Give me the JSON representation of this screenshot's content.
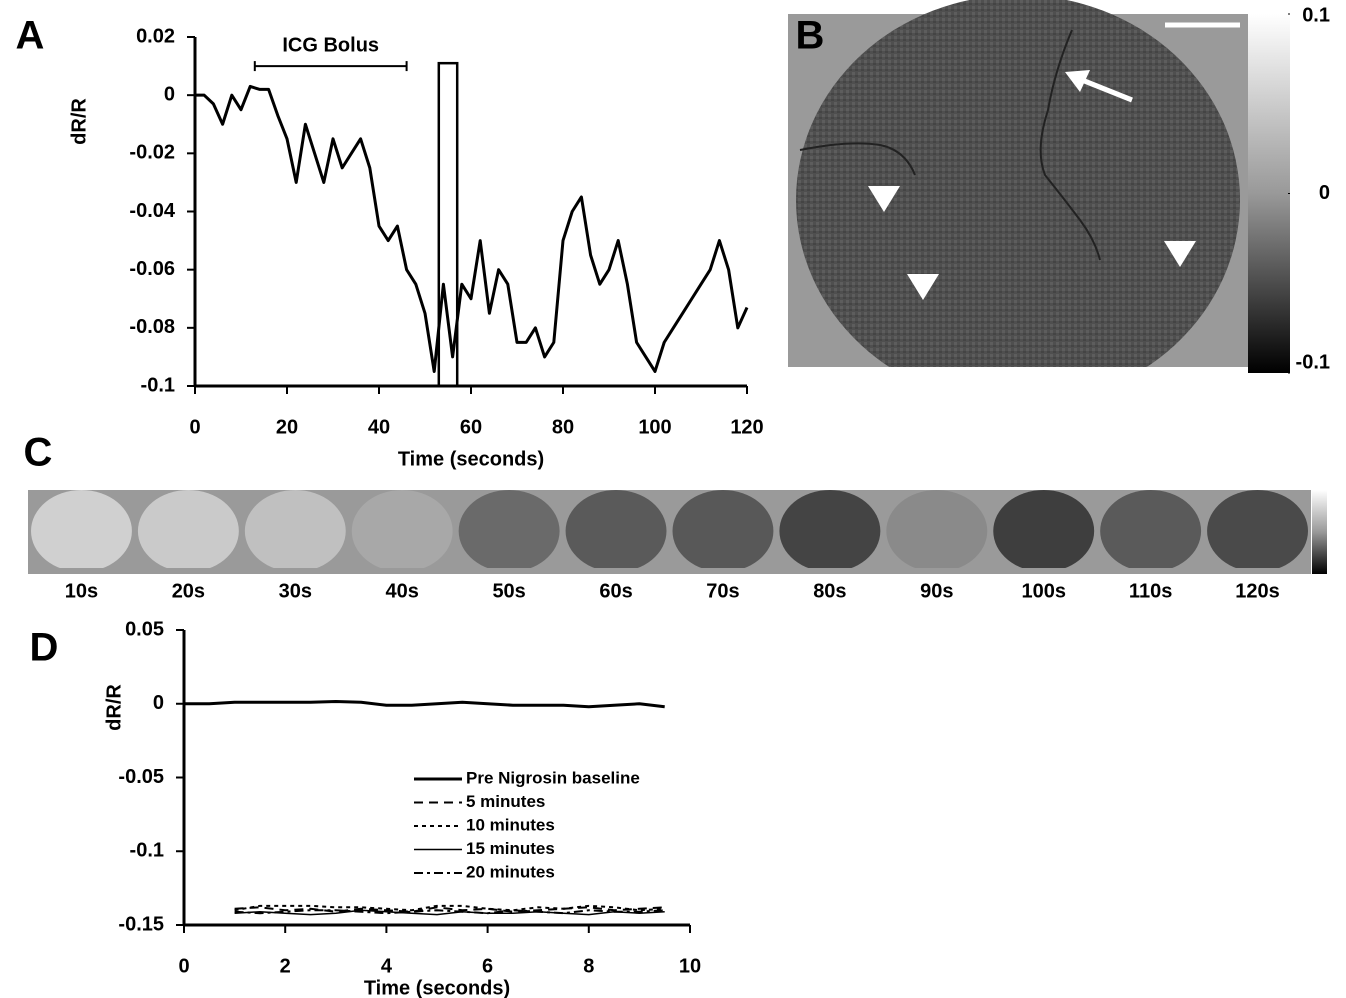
{
  "chart_data": [
    {
      "type": "line",
      "panel_label": "A",
      "xlabel": "Time (seconds)",
      "ylabel": "dR/R",
      "x": [
        0,
        2,
        4,
        6,
        8,
        10,
        12,
        14,
        16,
        18,
        20,
        22,
        24,
        26,
        28,
        30,
        32,
        34,
        36,
        38,
        40,
        42,
        44,
        46,
        48,
        50,
        52,
        54,
        56,
        58,
        60,
        62,
        64,
        66,
        68,
        70,
        72,
        74,
        76,
        78,
        80,
        82,
        84,
        86,
        88,
        90,
        92,
        94,
        96,
        98,
        100,
        102,
        104,
        106,
        108,
        110,
        112,
        114,
        116,
        118,
        120
      ],
      "series": [
        {
          "name": null,
          "color": "#000000",
          "style": "thick-solid",
          "values": [
            0,
            0,
            -0.003,
            -0.01,
            0,
            -0.005,
            0.003,
            0.002,
            0.002,
            -0.007,
            -0.015,
            -0.03,
            -0.01,
            -0.02,
            -0.03,
            -0.015,
            -0.025,
            -0.02,
            -0.015,
            -0.025,
            -0.045,
            -0.05,
            -0.045,
            -0.06,
            -0.065,
            -0.075,
            -0.095,
            -0.065,
            -0.09,
            -0.065,
            -0.07,
            -0.05,
            -0.075,
            -0.06,
            -0.065,
            -0.085,
            -0.085,
            -0.08,
            -0.09,
            -0.085,
            -0.05,
            -0.04,
            -0.035,
            -0.055,
            -0.065,
            -0.06,
            -0.05,
            -0.065,
            -0.085,
            -0.09,
            -0.095,
            -0.085,
            -0.08,
            -0.075,
            -0.07,
            -0.065,
            -0.06,
            -0.05,
            -0.06,
            -0.08,
            -0.073
          ]
        }
      ],
      "xlim": [
        0,
        120
      ],
      "xticks": [
        0,
        20,
        40,
        60,
        80,
        100,
        120
      ],
      "ylim": [
        -0.1,
        0.02
      ],
      "yticks": [
        0.02,
        0,
        -0.02,
        -0.04,
        -0.06,
        -0.08,
        -0.1
      ],
      "annotation": {
        "text": "ICG Bolus",
        "x": [
          13,
          46
        ],
        "y": 0.01
      },
      "highlight": {
        "x": [
          53,
          57
        ],
        "y": [
          -0.1,
          0.011
        ]
      }
    },
    {
      "type": "line",
      "panel_label": "D",
      "xlabel": "Time (seconds)",
      "ylabel": "dR/R",
      "x": [
        0,
        0.5,
        1,
        1.5,
        2,
        2.5,
        3,
        3.5,
        4,
        4.5,
        5,
        5.5,
        6,
        6.5,
        7,
        7.5,
        8,
        8.5,
        9,
        9.5
      ],
      "series": [
        {
          "name": "Pre Nigrosin baseline",
          "color": "#000000",
          "style": "thick-solid",
          "values": [
            0,
            0,
            0.001,
            0.001,
            0.001,
            0.001,
            0.0015,
            0.001,
            -0.001,
            -0.001,
            0,
            0.001,
            0,
            -0.001,
            -0.001,
            -0.001,
            -0.002,
            -0.001,
            0,
            -0.002
          ]
        },
        {
          "name": "5 minutes",
          "color": "#000000",
          "style": "long-dash",
          "values": [
            null,
            null,
            -0.139,
            -0.138,
            -0.14,
            -0.139,
            -0.141,
            -0.139,
            -0.14,
            -0.141,
            -0.138,
            -0.14,
            -0.139,
            -0.141,
            -0.14,
            -0.139,
            -0.138,
            -0.14,
            -0.139,
            -0.138
          ]
        },
        {
          "name": "10 minutes",
          "color": "#000000",
          "style": "dotted",
          "values": [
            null,
            null,
            -0.14,
            -0.137,
            -0.137,
            -0.137,
            -0.138,
            -0.138,
            -0.139,
            -0.14,
            -0.137,
            -0.137,
            -0.139,
            -0.14,
            -0.138,
            -0.139,
            -0.137,
            -0.138,
            -0.14,
            -0.139
          ]
        },
        {
          "name": "15 minutes",
          "color": "#000000",
          "style": "solid",
          "values": [
            null,
            null,
            -0.142,
            -0.141,
            -0.142,
            -0.143,
            -0.142,
            -0.14,
            -0.141,
            -0.142,
            -0.143,
            -0.141,
            -0.142,
            -0.142,
            -0.141,
            -0.142,
            -0.143,
            -0.141,
            -0.142,
            -0.141
          ]
        },
        {
          "name": "20 minutes",
          "color": "#000000",
          "style": "dash-dot",
          "values": [
            null,
            null,
            -0.141,
            -0.142,
            -0.141,
            -0.14,
            -0.14,
            -0.141,
            -0.142,
            -0.141,
            -0.14,
            -0.141,
            -0.142,
            -0.14,
            -0.141,
            -0.142,
            -0.14,
            -0.141,
            -0.141,
            -0.14
          ]
        }
      ],
      "xlim": [
        0,
        10
      ],
      "xticks": [
        0,
        2,
        4,
        6,
        8,
        10
      ],
      "ylim": [
        -0.15,
        0.05
      ],
      "yticks": [
        0.05,
        0,
        -0.05,
        -0.1,
        -0.15
      ],
      "legend": "lower center"
    }
  ],
  "panel_b": {
    "panel_label": "B",
    "colorbar_lim": [
      -0.1,
      0.1
    ],
    "colorbar_ticks": [
      0.1,
      0,
      -0.1
    ]
  },
  "panel_c": {
    "panel_label": "C",
    "frames": [
      "10s",
      "20s",
      "30s",
      "40s",
      "50s",
      "60s",
      "70s",
      "80s",
      "90s",
      "100s",
      "110s",
      "120s"
    ]
  }
}
